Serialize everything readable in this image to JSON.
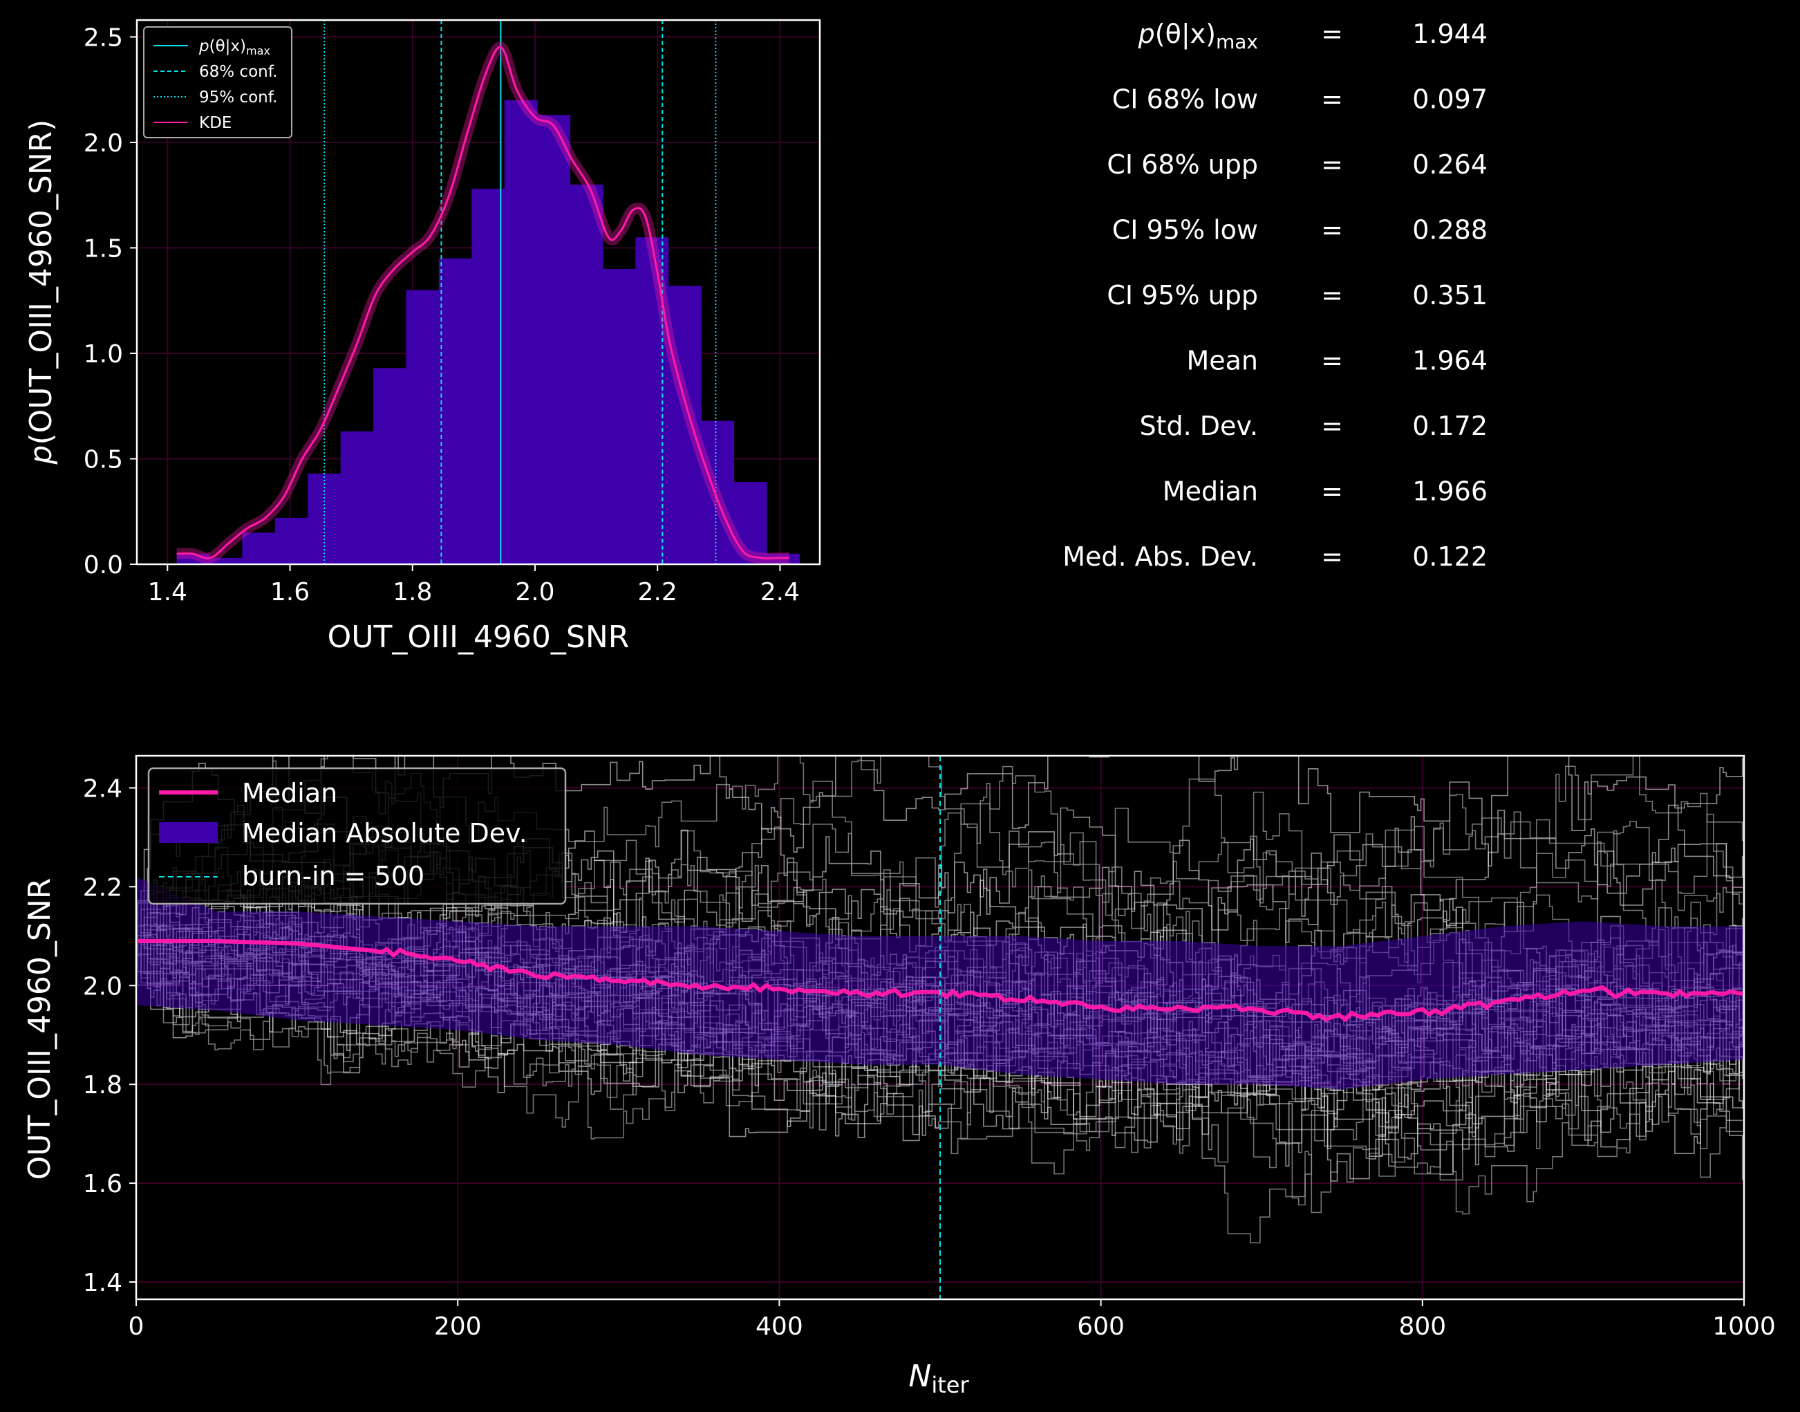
{
  "chart_data": [
    {
      "type": "histogram",
      "xlabel": "OUT_OIII_4960_SNR",
      "ylabel_prefix": "p",
      "ylabel": "(OUT_OIII_4960_SNR)",
      "xlim": [
        1.35,
        2.465
      ],
      "ylim": [
        0.0,
        2.58
      ],
      "xticks": [
        "1.4",
        "1.6",
        "1.8",
        "2.0",
        "2.2",
        "2.4"
      ],
      "yticks": [
        "0.0",
        "0.5",
        "1.0",
        "1.5",
        "2.0",
        "2.5"
      ],
      "grid": true,
      "colors": {
        "hist": "#3d00aa",
        "kde": "#ff1aa8",
        "conf": "#00e5ee"
      },
      "bin_edges": [
        1.415,
        1.4685,
        1.522,
        1.5755,
        1.629,
        1.6825,
        1.736,
        1.7895,
        1.843,
        1.8965,
        1.95,
        2.0035,
        2.057,
        2.1105,
        2.164,
        2.2175,
        2.271,
        2.3245,
        2.378,
        2.4315
      ],
      "hist_values": [
        0.05,
        0.03,
        0.15,
        0.22,
        0.43,
        0.63,
        0.93,
        1.3,
        1.45,
        1.78,
        2.2,
        2.13,
        1.8,
        1.4,
        1.55,
        1.32,
        0.68,
        0.39,
        0.05
      ],
      "kde_x": [
        1.415,
        1.44,
        1.47,
        1.5,
        1.53,
        1.56,
        1.59,
        1.62,
        1.65,
        1.68,
        1.71,
        1.74,
        1.77,
        1.8,
        1.83,
        1.86,
        1.89,
        1.92,
        1.945,
        1.97,
        2.0,
        2.03,
        2.06,
        2.09,
        2.12,
        2.14,
        2.16,
        2.18,
        2.2,
        2.22,
        2.25,
        2.28,
        2.31,
        2.34,
        2.37,
        2.4,
        2.415
      ],
      "kde_y": [
        0.05,
        0.05,
        0.03,
        0.1,
        0.17,
        0.22,
        0.32,
        0.5,
        0.64,
        0.84,
        1.05,
        1.28,
        1.4,
        1.48,
        1.56,
        1.75,
        2.05,
        2.33,
        2.45,
        2.25,
        2.12,
        2.08,
        1.92,
        1.78,
        1.55,
        1.58,
        1.68,
        1.65,
        1.38,
        1.05,
        0.72,
        0.45,
        0.22,
        0.06,
        0.03,
        0.03,
        0.03
      ],
      "vlines": [
        {
          "x": 1.944,
          "style": "solid"
        },
        {
          "x": 1.847,
          "style": "dashed"
        },
        {
          "x": 2.208,
          "style": "dashed"
        },
        {
          "x": 1.656,
          "style": "dotted"
        },
        {
          "x": 2.295,
          "style": "dotted"
        }
      ],
      "legend": {
        "placement": "top-left",
        "pmax_prefix": "p",
        "pmax_body": "(θ|x)",
        "pmax_sub": "max",
        "conf68": "68% conf.",
        "conf95": "95% conf.",
        "kde": "KDE"
      }
    },
    {
      "type": "line",
      "xlabel": "N",
      "xlabel_sub": "iter",
      "ylabel": "OUT_OIII_4960_SNR",
      "xlim": [
        0,
        1000
      ],
      "ylim": [
        1.365,
        2.465
      ],
      "xticks": [
        "0",
        "200",
        "400",
        "600",
        "800",
        "1000"
      ],
      "yticks": [
        "1.4",
        "1.6",
        "1.8",
        "2.0",
        "2.2",
        "2.4"
      ],
      "grid": true,
      "burn_in": 500,
      "colors": {
        "median": "#ff1aa8",
        "mad": "#3d00aa",
        "walkers": "#dddddd",
        "burn": "#00e5ee"
      },
      "median_x": [
        0,
        50,
        100,
        150,
        200,
        250,
        300,
        350,
        400,
        450,
        500,
        550,
        600,
        650,
        700,
        750,
        800,
        850,
        900,
        950,
        1000
      ],
      "median_y": [
        2.09,
        2.09,
        2.085,
        2.07,
        2.05,
        2.02,
        2.01,
        2.0,
        1.99,
        1.985,
        1.985,
        1.975,
        1.955,
        1.955,
        1.95,
        1.935,
        1.945,
        1.97,
        1.99,
        1.985,
        1.985
      ],
      "mad_upper": [
        2.22,
        2.15,
        2.15,
        2.14,
        2.13,
        2.12,
        2.12,
        2.12,
        2.11,
        2.1,
        2.1,
        2.1,
        2.09,
        2.09,
        2.08,
        2.08,
        2.1,
        2.12,
        2.13,
        2.12,
        2.12
      ],
      "mad_lower": [
        1.96,
        1.95,
        1.93,
        1.92,
        1.91,
        1.89,
        1.88,
        1.86,
        1.85,
        1.84,
        1.84,
        1.82,
        1.81,
        1.8,
        1.8,
        1.79,
        1.81,
        1.82,
        1.83,
        1.84,
        1.85
      ],
      "legend": {
        "placement": "top-left",
        "median": "Median",
        "mad": "Median Absolute Dev.",
        "burn": "burn-in = 500"
      }
    }
  ],
  "stats": [
    {
      "label": "",
      "value": "1.944"
    },
    {
      "label": "CI 68% low",
      "value": "0.097"
    },
    {
      "label": "CI 68% upp",
      "value": "0.264"
    },
    {
      "label": "CI 95% low",
      "value": "0.288"
    },
    {
      "label": "CI 95% upp",
      "value": "0.351"
    },
    {
      "label": "Mean",
      "value": "1.964"
    },
    {
      "label": "Std.  Dev.",
      "value": "0.172"
    },
    {
      "label": "Median",
      "value": "1.966"
    },
    {
      "label": "Med. Abs. Dev.",
      "value": "0.122"
    }
  ],
  "stats_first_label": {
    "prefix": "p",
    "body": "(θ|x)",
    "sub": "max"
  },
  "stats_equals": "="
}
